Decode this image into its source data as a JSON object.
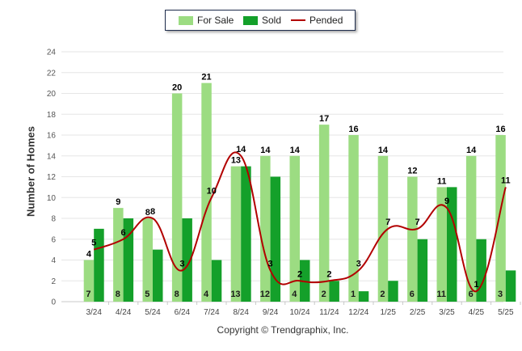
{
  "legend": {
    "for_sale": "For Sale",
    "sold": "Sold",
    "pended": "Pended"
  },
  "copyright": "Copyright © Trendgraphix, Inc.",
  "chart_data": {
    "type": "bar",
    "ylabel": "Number of Homes",
    "xlabel": "",
    "ylim": [
      0,
      24
    ],
    "yticks": [
      0,
      2,
      4,
      6,
      8,
      10,
      12,
      14,
      16,
      18,
      20,
      22,
      24
    ],
    "grid": true,
    "legend_position": "top-center",
    "categories": [
      "3/24",
      "4/24",
      "5/24",
      "6/24",
      "7/24",
      "8/24",
      "9/24",
      "10/24",
      "11/24",
      "12/24",
      "1/25",
      "2/25",
      "3/25",
      "4/25",
      "5/25"
    ],
    "series": [
      {
        "name": "For Sale",
        "type": "bar",
        "color": "#9cdc82",
        "values": [
          4,
          9,
          8,
          20,
          21,
          13,
          14,
          14,
          17,
          16,
          14,
          12,
          11,
          14,
          16
        ]
      },
      {
        "name": "Sold",
        "type": "bar",
        "color": "#14a02a",
        "values": [
          7,
          8,
          5,
          8,
          4,
          13,
          12,
          4,
          2,
          1,
          2,
          6,
          11,
          6,
          3
        ]
      },
      {
        "name": "Pended",
        "type": "line",
        "color": "#b20000",
        "values": [
          5,
          6,
          8,
          3,
          10,
          14,
          3,
          2,
          2,
          3,
          7,
          7,
          9,
          1,
          11
        ]
      }
    ]
  }
}
